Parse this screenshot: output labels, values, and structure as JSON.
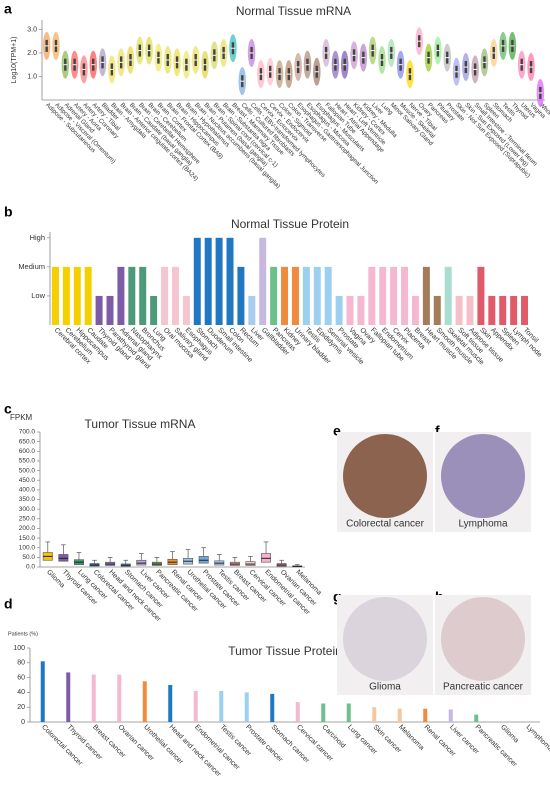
{
  "letters": [
    "a",
    "b",
    "c",
    "d",
    "e",
    "f",
    "g",
    "h"
  ],
  "chart_data": [
    {
      "type": "violin",
      "title": "Normal Tissue mRNA",
      "y_label": "Log10(TPM+1)",
      "categories": [
        "Adipose - Subcutaneous",
        "Adipose - Visceral (Omentum)",
        "Adrenal Gland",
        "Artery - Aorta",
        "Artery - Coronary",
        "Artery - Tibial",
        "Bladder",
        "Brain - Amygdala",
        "Brain - Anterior cingulate cortex (BA24)",
        "Brain - Caudate (basal ganglia)",
        "Brain - Cerebellar Hemisphere",
        "Brain - Cerebellum",
        "Brain - Cortex",
        "Brain - Frontal Cortex (BA9)",
        "Brain - Hippocampus",
        "Brain - Hypothalamus",
        "Brain - Nucleus accumbens (basal ganglia)",
        "Brain - Putamen (basal ganglia)",
        "Brain - Spinal cord (cervical c-1)",
        "Brain - Substantia nigra",
        "Breast - Mammary Tissue",
        "Cells - Cultured fibroblasts",
        "Cells - EBV-transformed lymphocytes",
        "Cervix - Ectocervix",
        "Cervix - Endocervix",
        "Colon - Sigmoid",
        "Colon - Transverse",
        "Esophagus - Gastroesophageal Junction",
        "Esophagus - Mucosa",
        "Esophagus - Muscularis",
        "Fallopian Tube",
        "Heart - Atrial Appendage",
        "Heart - Left Ventricle",
        "Kidney - Cortex",
        "Kidney - Medulla",
        "Liver",
        "Lung",
        "Minor Salivary Gland",
        "Muscle - Skeletal",
        "Nerve - Tibial",
        "Ovary",
        "Pancreas",
        "Pituitary",
        "Prostate",
        "Skin - Not Sun Exposed (Suprapubic)",
        "Skin - Sun Exposed (Lower leg)",
        "Small Intestine - Terminal Ileum",
        "Spleen",
        "Stomach",
        "Testis",
        "Thyroid",
        "Uterus",
        "Vagina",
        "Whole Blood"
      ],
      "values": [
        2.3,
        2.3,
        1.5,
        1.5,
        1.3,
        1.5,
        1.6,
        1.3,
        1.6,
        1.7,
        2.1,
        2.1,
        1.8,
        1.7,
        1.6,
        1.5,
        1.7,
        1.5,
        1.9,
        2.0,
        2.2,
        0.8,
        2.0,
        1.1,
        1.2,
        1.1,
        1.1,
        1.4,
        1.5,
        1.2,
        2.0,
        1.5,
        1.5,
        1.9,
        1.8,
        2.1,
        1.7,
        2.0,
        1.5,
        1.1,
        2.5,
        1.8,
        2.1,
        1.8,
        1.2,
        1.4,
        1.3,
        1.6,
        2.0,
        2.3,
        2.3,
        1.5,
        1.4,
        0.3
      ],
      "colors": [
        "#f4a460",
        "#f0b060",
        "#8fbc5a",
        "#ff6666",
        "#ff7f7f",
        "#ff5555",
        "#b0a0c0",
        "#f0e060",
        "#eee070",
        "#e8d850",
        "#e0e060",
        "#dddd55",
        "#f0e868",
        "#e8e060",
        "#eedd55",
        "#e8e870",
        "#f0e060",
        "#e0d850",
        "#d8d860",
        "#e8e068",
        "#40c0c0",
        "#7fb0e0",
        "#c080e0",
        "#ffb6c1",
        "#ffc0cb",
        "#c0a080",
        "#b89070",
        "#c8a090",
        "#b09080",
        "#a08070",
        "#d0b0d0",
        "#9070c0",
        "#8060b0",
        "#cc99cc",
        "#bb88cc",
        "#aacc66",
        "#99dd88",
        "#a0e0b0",
        "#8888ee",
        "#ffd700",
        "#ffaacc",
        "#9acd32",
        "#99ee99",
        "#bbbbbb",
        "#aaaaee",
        "#9999dd",
        "#bb99aa",
        "#99bb77",
        "#ffcc88",
        "#66bb66",
        "#44aa44",
        "#ff88bb",
        "#ff77aa",
        "#dd66ff"
      ],
      "ylim": [
        0,
        3.4
      ],
      "yticks": [
        {
          "value": 1,
          "label": "1.0"
        },
        {
          "value": 2,
          "label": "2.0"
        },
        {
          "value": 3,
          "label": "3.0"
        }
      ]
    },
    {
      "type": "level-bar",
      "title": "Normal Tissue Protein",
      "categories": [
        "Cerebral cortex",
        "Cerebellum",
        "Hippocampus",
        "Caudate",
        "Thyroid gland",
        "Parathyroid gland",
        "Adrenal gland",
        "Nasopharynx",
        "Bronchus",
        "Lung",
        "Oral mucosa",
        "Salivary gland",
        "Esophagus",
        "Stomach",
        "Duodenum",
        "Small intestine",
        "Colon",
        "Rectum",
        "Liver",
        "Gallbladder",
        "Pancreas",
        "Kidney",
        "Urinary bladder",
        "Testis",
        "Epididymis",
        "Seminal vesicle",
        "Prostate",
        "Vagina",
        "Ovary",
        "Fallopian tube",
        "Endometrium",
        "Cervix",
        "Placenta",
        "Breast",
        "Heart muscle",
        "Smooth muscle",
        "Skeletal muscle",
        "Soft tissue",
        "Adipose tissue",
        "Skin",
        "Appendix",
        "Spleen",
        "Lymph node",
        "Tonsil"
      ],
      "values": [
        2,
        2,
        2,
        2,
        1,
        1,
        2,
        2,
        2,
        1,
        2,
        2,
        1,
        3,
        3,
        3,
        3,
        2,
        1,
        3,
        2,
        2,
        2,
        2,
        2,
        2,
        1,
        1,
        1,
        2,
        2,
        2,
        2,
        1,
        2,
        1,
        2,
        1,
        1,
        2,
        1,
        1,
        1,
        1
      ],
      "colors": [
        "#f5d000",
        "#f5d000",
        "#f5d000",
        "#f5d000",
        "#7d5ba6",
        "#7d5ba6",
        "#7d5ba6",
        "#4c9a7a",
        "#4c9a7a",
        "#4c9a7a",
        "#f5c6d0",
        "#f5c6d0",
        "#f5c6d0",
        "#1f78c1",
        "#1f78c1",
        "#1f78c1",
        "#1f78c1",
        "#1f78c1",
        "#a9cbef",
        "#c7b8e0",
        "#6dbf8b",
        "#f08a3c",
        "#f08a3c",
        "#9dd0f0",
        "#9dd0f0",
        "#9dd0f0",
        "#9dd0f0",
        "#f5b8d0",
        "#f5b8d0",
        "#f5b8d0",
        "#f5b8d0",
        "#f5b8d0",
        "#f5b8d0",
        "#f5b8d0",
        "#a47c5a",
        "#a47c5a",
        "#a8ddd0",
        "#f5c0c8",
        "#f5c0c8",
        "#e05a6a",
        "#e05a6a",
        "#e05a6a",
        "#e05a6a",
        "#e05a6a"
      ],
      "ylim": [
        0,
        3.2
      ],
      "yticks": [
        {
          "value": 1,
          "label": "Low"
        },
        {
          "value": 2,
          "label": "Medium"
        },
        {
          "value": 3,
          "label": "High"
        }
      ]
    },
    {
      "type": "box",
      "title": "Tumor Tissue mRNA",
      "y_label": "FPKM",
      "categories": [
        "Glioma",
        "Thyroid cancer",
        "Lung cancer",
        "Colorectal cancer",
        "Head and neck cancer",
        "Stomach cancer",
        "Liver cancer",
        "Pancreatic cancer",
        "Renal cancer",
        "Urothelial cancer",
        "Prostate cancer",
        "Testis cancer",
        "Breast cancer",
        "Cervical cancer",
        "Endometrial cancer",
        "Ovarian cancer",
        "Melanoma"
      ],
      "q1": [
        35,
        30,
        12,
        5,
        8,
        4,
        10,
        8,
        12,
        15,
        20,
        10,
        8,
        8,
        25,
        4,
        1
      ],
      "median": [
        55,
        45,
        25,
        10,
        15,
        9,
        20,
        15,
        25,
        30,
        35,
        20,
        15,
        15,
        45,
        10,
        3
      ],
      "q3": [
        75,
        65,
        38,
        18,
        25,
        16,
        35,
        25,
        40,
        45,
        55,
        32,
        25,
        28,
        70,
        18,
        6
      ],
      "whisker_high": [
        130,
        115,
        75,
        35,
        50,
        35,
        70,
        50,
        80,
        90,
        100,
        65,
        50,
        55,
        130,
        35,
        12
      ],
      "colors": [
        "#f5c400",
        "#7d5ba6",
        "#3e9c78",
        "#1f78c1",
        "#8e7cc3",
        "#3d85c6",
        "#b4a7d6",
        "#6aa84f",
        "#e69138",
        "#9fc5e8",
        "#6fa8dc",
        "#a4c2f4",
        "#ea9999",
        "#f4cccc",
        "#f6b0d0",
        "#c27ba0",
        "#d5a6bd"
      ],
      "ylim": [
        0,
        700
      ],
      "yticks": [
        {
          "value": 0,
          "label": "0.0"
        },
        {
          "value": 50,
          "label": "50.0"
        },
        {
          "value": 100,
          "label": "100.0"
        },
        {
          "value": 150,
          "label": "150.0"
        },
        {
          "value": 200,
          "label": "200.0"
        },
        {
          "value": 250,
          "label": "250.0"
        },
        {
          "value": 300,
          "label": "300.0"
        },
        {
          "value": 350,
          "label": "350.0"
        },
        {
          "value": 400,
          "label": "400.0"
        },
        {
          "value": 450,
          "label": "450.0"
        },
        {
          "value": 500,
          "label": "500.0"
        },
        {
          "value": 550,
          "label": "550.0"
        },
        {
          "value": 600,
          "label": "600.0"
        },
        {
          "value": 650,
          "label": "650.0"
        },
        {
          "value": 700,
          "label": "700.0"
        }
      ]
    },
    {
      "type": "bar",
      "title": "Tumor Tissue Protein",
      "y_label": "Patients (%)",
      "categories": [
        "Colorectal cancer",
        "Thyroid cancer",
        "Breast cancer",
        "Ovarian cancer",
        "Urothelial cancer",
        "Head and neck cancer",
        "Endometrial cancer",
        "Testis cancer",
        "Prostate cancer",
        "Stomach cancer",
        "Cervical cancer",
        "Carcinoid",
        "Lung cancer",
        "Skin cancer",
        "Melanoma",
        "Renal cancer",
        "Liver cancer",
        "Pancreatic cancer",
        "Glioma",
        "Lymphoma"
      ],
      "values": [
        82,
        67,
        64,
        64,
        55,
        50,
        42,
        42,
        40,
        38,
        27,
        25,
        25,
        20,
        18,
        18,
        17,
        10,
        0,
        0
      ],
      "colors": [
        "#1f78c1",
        "#7d5ba6",
        "#f5b8d0",
        "#f5b8d0",
        "#f08a3c",
        "#1f78c1",
        "#f5b8d0",
        "#9dd0f0",
        "#9dd0f0",
        "#1f78c1",
        "#f5b8d0",
        "#6dbf8b",
        "#6dbf8b",
        "#f5c6a0",
        "#f5c6a0",
        "#f08a3c",
        "#c7b8e0",
        "#6dbf8b",
        "#f5d000",
        "#e05a6a"
      ],
      "ylim": [
        0,
        100
      ],
      "yticks": [
        0,
        20,
        40,
        60,
        80,
        100
      ]
    }
  ],
  "images": [
    {
      "caption": "Colorectal cancer",
      "color": "#7a4a32"
    },
    {
      "caption": "Lymphoma",
      "color": "#8b7fb0"
    },
    {
      "caption": "Glioma",
      "color": "#d8cfd8"
    },
    {
      "caption": "Pancreatic cancer",
      "color": "#d9c4c8"
    }
  ]
}
